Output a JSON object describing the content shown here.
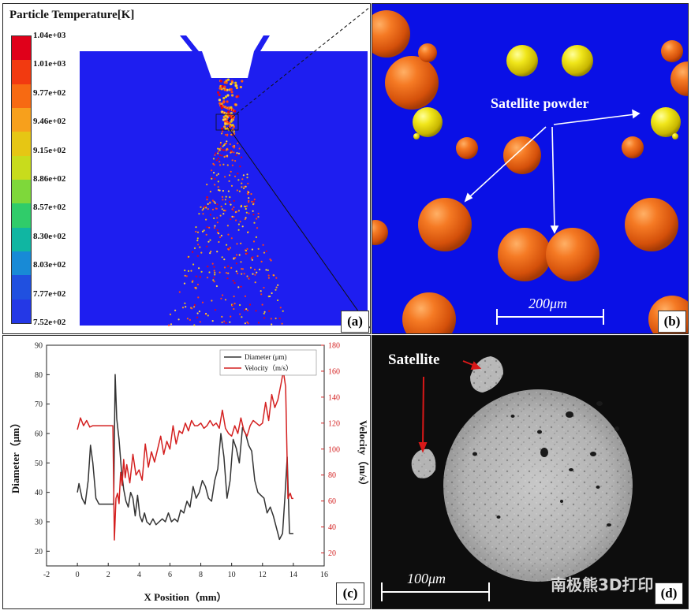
{
  "panel_a": {
    "tag": "(a)",
    "colorbar_title": "Particle Temperature[K]",
    "colorbar_labels": [
      "1.04e+03",
      "1.01e+03",
      "9.77e+02",
      "9.46e+02",
      "9.15e+02",
      "8.86e+02",
      "8.57e+02",
      "8.30e+02",
      "8.03e+02",
      "7.77e+02",
      "7.52e+02"
    ],
    "colorbar_colors": [
      "#e0001a",
      "#f23a10",
      "#f76a12",
      "#f7a01c",
      "#e6c614",
      "#c8dc1c",
      "#7ed83a",
      "#30cc6a",
      "#10b6a2",
      "#188ad6",
      "#2050e0",
      "#2438e6"
    ]
  },
  "panel_b": {
    "tag": "(b)",
    "annotation": "Satellite powder",
    "scale_bar": "200μm"
  },
  "panel_c": {
    "tag": "(c)",
    "chart_data": {
      "type": "line",
      "xlabel": "X Position（mm）",
      "ylabel_left": "Diameter（μm）",
      "ylabel_right": "Velocity（m/s）",
      "xlim": [
        -2,
        16
      ],
      "xticks": [
        -2,
        0,
        2,
        4,
        6,
        8,
        10,
        12,
        14,
        16
      ],
      "ylim_left": [
        15,
        90
      ],
      "yticks_left": [
        20,
        30,
        40,
        50,
        60,
        70,
        80,
        90
      ],
      "ylim_right": [
        10,
        180
      ],
      "yticks_right": [
        20,
        40,
        60,
        80,
        100,
        120,
        140,
        160,
        180
      ],
      "legend_position": "top-right",
      "series": [
        {
          "name": "Diameter (μm)",
          "axis": "left",
          "color": "#333333",
          "x": [
            0,
            0.1,
            0.3,
            0.5,
            0.7,
            0.85,
            1.0,
            1.2,
            1.4,
            1.6,
            1.8,
            2.0,
            2.2,
            2.35,
            2.45,
            2.55,
            2.7,
            2.85,
            3.0,
            3.15,
            3.3,
            3.45,
            3.6,
            3.75,
            3.9,
            4.05,
            4.2,
            4.35,
            4.5,
            4.7,
            4.9,
            5.1,
            5.3,
            5.5,
            5.7,
            5.9,
            6.1,
            6.3,
            6.5,
            6.7,
            6.9,
            7.1,
            7.3,
            7.5,
            7.7,
            7.9,
            8.1,
            8.3,
            8.5,
            8.7,
            8.9,
            9.1,
            9.3,
            9.5,
            9.7,
            9.9,
            10.1,
            10.3,
            10.5,
            10.7,
            10.9,
            11.1,
            11.3,
            11.5,
            11.7,
            11.9,
            12.1,
            12.3,
            12.5,
            12.7,
            12.9,
            13.1,
            13.3,
            13.45,
            13.6,
            13.75,
            13.9,
            14.0
          ],
          "y": [
            40,
            43,
            38,
            36,
            44,
            56,
            50,
            38,
            36,
            36,
            36,
            36,
            36,
            36,
            80,
            65,
            58,
            48,
            41,
            37,
            35,
            40,
            38,
            32,
            39,
            32,
            30,
            33,
            30,
            29,
            31,
            29,
            30,
            31,
            30,
            33,
            30,
            31,
            30,
            34,
            33,
            37,
            35,
            42,
            38,
            40,
            44,
            42,
            38,
            37,
            44,
            48,
            60,
            52,
            38,
            44,
            58,
            55,
            50,
            62,
            60,
            56,
            54,
            44,
            40,
            39,
            38,
            33,
            35,
            32,
            28,
            24,
            26,
            38,
            52,
            26,
            26,
            26
          ]
        },
        {
          "name": "Velocity（m/s）",
          "axis": "right",
          "color": "#d42020",
          "x": [
            0,
            0.2,
            0.4,
            0.6,
            0.8,
            1.0,
            1.2,
            1.4,
            1.6,
            1.8,
            2.0,
            2.2,
            2.3,
            2.4,
            2.5,
            2.6,
            2.7,
            2.8,
            2.9,
            3.0,
            3.1,
            3.2,
            3.4,
            3.6,
            3.8,
            4.0,
            4.2,
            4.4,
            4.6,
            4.8,
            5.0,
            5.2,
            5.4,
            5.6,
            5.8,
            6.0,
            6.2,
            6.4,
            6.6,
            6.8,
            7.0,
            7.2,
            7.4,
            7.6,
            7.8,
            8.0,
            8.2,
            8.4,
            8.6,
            8.8,
            9.0,
            9.2,
            9.4,
            9.6,
            9.8,
            10.0,
            10.2,
            10.4,
            10.6,
            10.8,
            11.0,
            11.2,
            11.4,
            11.6,
            11.8,
            12.0,
            12.2,
            12.4,
            12.6,
            12.8,
            13.0,
            13.2,
            13.35,
            13.5,
            13.65,
            13.8,
            13.9,
            14.0
          ],
          "y": [
            115,
            124,
            118,
            122,
            117,
            118,
            118,
            118,
            118,
            118,
            118,
            118,
            118,
            30,
            62,
            66,
            58,
            82,
            72,
            92,
            78,
            88,
            74,
            96,
            80,
            84,
            76,
            104,
            86,
            98,
            90,
            100,
            110,
            96,
            106,
            100,
            118,
            104,
            114,
            112,
            120,
            114,
            122,
            118,
            118,
            120,
            116,
            118,
            122,
            118,
            120,
            116,
            130,
            116,
            112,
            110,
            118,
            112,
            124,
            114,
            110,
            118,
            122,
            120,
            118,
            120,
            136,
            122,
            142,
            132,
            138,
            150,
            160,
            148,
            62,
            66,
            62,
            62
          ]
        }
      ]
    }
  },
  "panel_d": {
    "tag": "(d)",
    "annotation": "Satellite",
    "scale_bar": "100μm",
    "watermark": "南极熊3D打印"
  }
}
